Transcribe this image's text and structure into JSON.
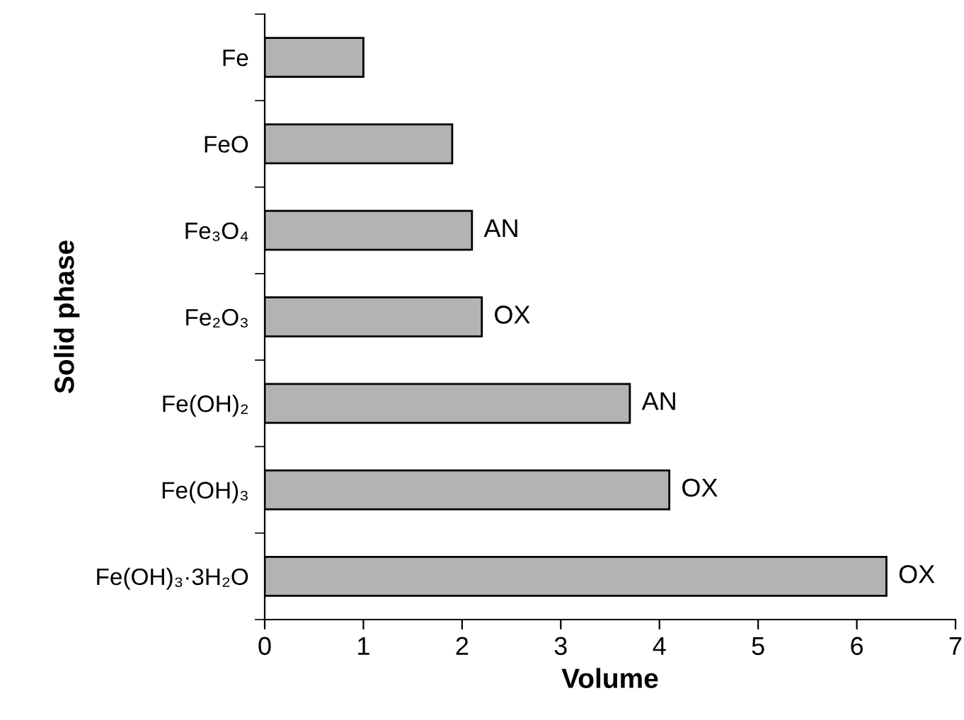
{
  "chart_data": {
    "type": "bar",
    "orientation": "horizontal",
    "xlabel": "Volume",
    "ylabel": "Solid phase",
    "categories": [
      "Fe",
      "FeO",
      "Fe₃O₄",
      "Fe₂O₃",
      "Fe(OH)₂",
      "Fe(OH)₃",
      "Fe(OH)₃·3H₂O"
    ],
    "values": [
      1.0,
      1.9,
      2.1,
      2.2,
      3.7,
      4.1,
      6.3
    ],
    "value_labels": [
      null,
      null,
      "AN",
      "OX",
      "AN",
      "OX",
      "OX"
    ],
    "color": "#b3b3b3",
    "xlim": [
      0,
      7
    ],
    "xticks": [
      0,
      1,
      2,
      3,
      4,
      5,
      6,
      7
    ],
    "grid": false,
    "legend": false
  }
}
